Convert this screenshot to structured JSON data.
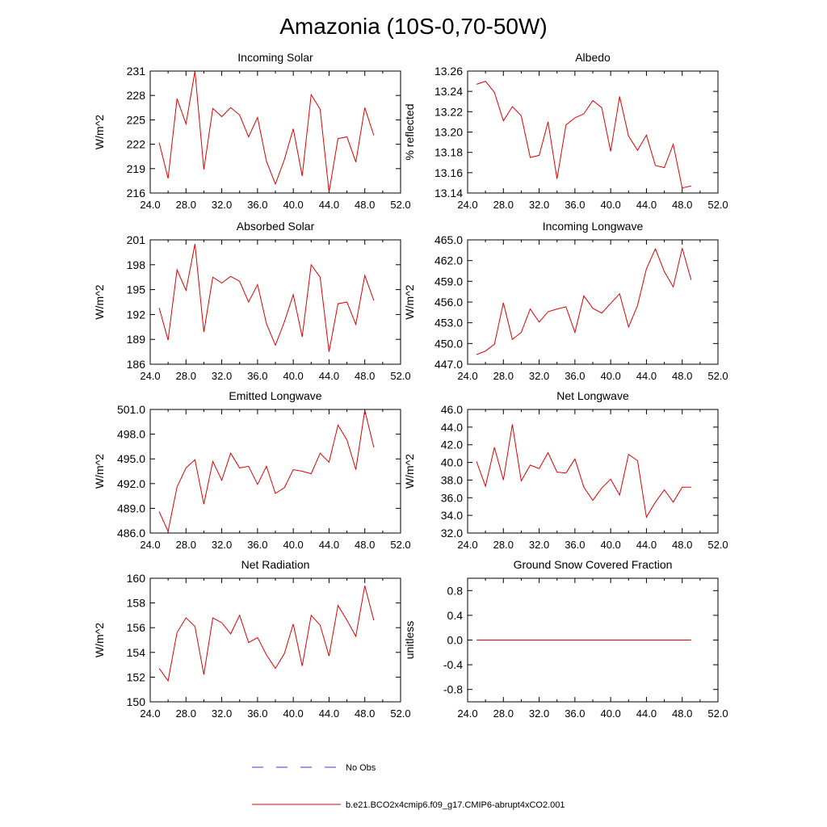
{
  "title": "Amazonia (10S-0,70-50W)",
  "series_color": "#e00000",
  "obs_color": "#3a3af0",
  "legend": {
    "obs_label": "No Obs",
    "model_label": "b.e21.BCO2x4cmip6.f09_g17.CMIP6-abrupt4xCO2.001"
  },
  "chart_data": [
    {
      "type": "line",
      "title": "Incoming Solar",
      "ylabel": "W/m^2",
      "xlim": [
        24,
        52
      ],
      "xticks": [
        "24.0",
        "28.0",
        "32.0",
        "36.0",
        "40.0",
        "44.0",
        "48.0",
        "52.0"
      ],
      "ylim": [
        216,
        231
      ],
      "yticks": [
        "216",
        "219",
        "222",
        "225",
        "228",
        "231"
      ],
      "x": [
        25,
        26,
        27,
        28,
        29,
        30,
        31,
        32,
        33,
        34,
        35,
        36,
        37,
        38,
        39,
        40,
        41,
        42,
        43,
        44,
        45,
        46,
        47,
        48,
        49
      ],
      "values": [
        222.2,
        217.8,
        227.6,
        224.5,
        231.0,
        218.9,
        226.4,
        225.4,
        226.5,
        225.6,
        222.9,
        225.3,
        219.9,
        217.1,
        220.1,
        223.9,
        218.1,
        228.1,
        226.3,
        216.1,
        222.7,
        222.9,
        219.8,
        226.5,
        223.1
      ]
    },
    {
      "type": "line",
      "title": "Albedo",
      "ylabel": "% reflected",
      "xlim": [
        24,
        52
      ],
      "xticks": [
        "24.0",
        "28.0",
        "32.0",
        "36.0",
        "40.0",
        "44.0",
        "48.0",
        "52.0"
      ],
      "ylim": [
        13.14,
        13.26
      ],
      "yticks": [
        "13.14",
        "13.16",
        "13.18",
        "13.20",
        "13.22",
        "13.24",
        "13.26"
      ],
      "x": [
        25,
        26,
        27,
        28,
        29,
        30,
        31,
        32,
        33,
        34,
        35,
        36,
        37,
        38,
        39,
        40,
        41,
        42,
        43,
        44,
        45,
        46,
        47,
        48,
        49
      ],
      "values": [
        13.247,
        13.25,
        13.239,
        13.211,
        13.225,
        13.216,
        13.175,
        13.177,
        13.21,
        13.154,
        13.207,
        13.214,
        13.218,
        13.231,
        13.224,
        13.181,
        13.235,
        13.196,
        13.182,
        13.197,
        13.167,
        13.165,
        13.188,
        13.145,
        13.147
      ]
    },
    {
      "type": "line",
      "title": "Absorbed Solar",
      "ylabel": "W/m^2",
      "xlim": [
        24,
        52
      ],
      "xticks": [
        "24.0",
        "28.0",
        "32.0",
        "36.0",
        "40.0",
        "44.0",
        "48.0",
        "52.0"
      ],
      "ylim": [
        186,
        201
      ],
      "yticks": [
        "186",
        "189",
        "192",
        "195",
        "198",
        "201"
      ],
      "x": [
        25,
        26,
        27,
        28,
        29,
        30,
        31,
        32,
        33,
        34,
        35,
        36,
        37,
        38,
        39,
        40,
        41,
        42,
        43,
        44,
        45,
        46,
        47,
        48,
        49
      ],
      "values": [
        192.8,
        188.9,
        197.4,
        194.9,
        200.5,
        189.9,
        196.5,
        195.8,
        196.6,
        196.0,
        193.5,
        195.6,
        190.9,
        188.3,
        191.1,
        194.4,
        189.3,
        198.0,
        196.5,
        187.5,
        193.3,
        193.5,
        190.8,
        196.7,
        193.7
      ]
    },
    {
      "type": "line",
      "title": "Incoming Longwave",
      "ylabel": "W/m^2",
      "xlim": [
        24,
        52
      ],
      "xticks": [
        "24.0",
        "28.0",
        "32.0",
        "36.0",
        "40.0",
        "44.0",
        "48.0",
        "52.0"
      ],
      "ylim": [
        447,
        465
      ],
      "yticks": [
        "447.0",
        "450.0",
        "453.0",
        "456.0",
        "459.0",
        "462.0",
        "465.0"
      ],
      "x": [
        25,
        26,
        27,
        28,
        29,
        30,
        31,
        32,
        33,
        34,
        35,
        36,
        37,
        38,
        39,
        40,
        41,
        42,
        43,
        44,
        45,
        46,
        47,
        48,
        49
      ],
      "values": [
        448.4,
        448.9,
        449.9,
        455.9,
        450.6,
        451.6,
        455.0,
        453.1,
        454.6,
        455.0,
        455.3,
        451.6,
        456.9,
        455.1,
        454.4,
        455.8,
        457.2,
        452.4,
        455.5,
        460.8,
        463.7,
        460.4,
        458.2,
        463.8,
        459.2
      ]
    },
    {
      "type": "line",
      "title": "Emitted Longwave",
      "ylabel": "W/m^2",
      "xlim": [
        24,
        52
      ],
      "xticks": [
        "24.0",
        "28.0",
        "32.0",
        "36.0",
        "40.0",
        "44.0",
        "48.0",
        "52.0"
      ],
      "ylim": [
        486,
        501
      ],
      "yticks": [
        "486.0",
        "489.0",
        "492.0",
        "495.0",
        "498.0",
        "501.0"
      ],
      "x": [
        25,
        26,
        27,
        28,
        29,
        30,
        31,
        32,
        33,
        34,
        35,
        36,
        37,
        38,
        39,
        40,
        41,
        42,
        43,
        44,
        45,
        46,
        47,
        48,
        49
      ],
      "values": [
        488.6,
        486.2,
        491.6,
        493.9,
        494.9,
        489.5,
        494.7,
        492.4,
        495.7,
        493.9,
        494.1,
        491.9,
        494.1,
        490.8,
        491.5,
        493.7,
        493.5,
        493.2,
        495.7,
        494.6,
        499.1,
        497.3,
        493.7,
        500.9,
        496.4
      ]
    },
    {
      "type": "line",
      "title": "Net Longwave",
      "ylabel": "W/m^2",
      "xlim": [
        24,
        52
      ],
      "xticks": [
        "24.0",
        "28.0",
        "32.0",
        "36.0",
        "40.0",
        "44.0",
        "48.0",
        "52.0"
      ],
      "ylim": [
        32,
        46
      ],
      "yticks": [
        "32.0",
        "34.0",
        "36.0",
        "38.0",
        "40.0",
        "42.0",
        "44.0",
        "46.0"
      ],
      "x": [
        25,
        26,
        27,
        28,
        29,
        30,
        31,
        32,
        33,
        34,
        35,
        36,
        37,
        38,
        39,
        40,
        41,
        42,
        43,
        44,
        45,
        46,
        47,
        48,
        49
      ],
      "values": [
        40.1,
        37.3,
        41.7,
        38.0,
        44.3,
        37.9,
        39.7,
        39.3,
        41.1,
        38.9,
        38.8,
        40.4,
        37.2,
        35.7,
        37.1,
        38.1,
        36.3,
        40.9,
        40.2,
        33.8,
        35.5,
        36.9,
        35.5,
        37.2,
        37.2
      ]
    },
    {
      "type": "line",
      "title": "Net Radiation",
      "ylabel": "W/m^2",
      "xlim": [
        24,
        52
      ],
      "xticks": [
        "24.0",
        "28.0",
        "32.0",
        "36.0",
        "40.0",
        "44.0",
        "48.0",
        "52.0"
      ],
      "ylim": [
        150,
        160
      ],
      "yticks": [
        "150",
        "152",
        "154",
        "156",
        "158",
        "160"
      ],
      "x": [
        25,
        26,
        27,
        28,
        29,
        30,
        31,
        32,
        33,
        34,
        35,
        36,
        37,
        38,
        39,
        40,
        41,
        42,
        43,
        44,
        45,
        46,
        47,
        48,
        49
      ],
      "values": [
        152.7,
        151.7,
        155.6,
        156.8,
        156.1,
        152.2,
        156.8,
        156.4,
        155.5,
        157.0,
        154.8,
        155.2,
        153.8,
        152.7,
        153.9,
        156.3,
        152.9,
        157.0,
        156.2,
        153.7,
        157.8,
        156.6,
        155.3,
        159.4,
        156.6
      ]
    },
    {
      "type": "line",
      "title": "Ground Snow Covered Fraction",
      "ylabel": "unitless",
      "xlim": [
        24,
        52
      ],
      "xticks": [
        "24.0",
        "28.0",
        "32.0",
        "36.0",
        "40.0",
        "44.0",
        "48.0",
        "52.0"
      ],
      "ylim": [
        -1.0,
        1.0
      ],
      "yticks": [
        "-0.8",
        "-0.4",
        "0.0",
        "0.4",
        "0.8"
      ],
      "x": [
        25,
        26,
        27,
        28,
        29,
        30,
        31,
        32,
        33,
        34,
        35,
        36,
        37,
        38,
        39,
        40,
        41,
        42,
        43,
        44,
        45,
        46,
        47,
        48,
        49
      ],
      "values": [
        0,
        0,
        0,
        0,
        0,
        0,
        0,
        0,
        0,
        0,
        0,
        0,
        0,
        0,
        0,
        0,
        0,
        0,
        0,
        0,
        0,
        0,
        0,
        0,
        0
      ]
    }
  ]
}
